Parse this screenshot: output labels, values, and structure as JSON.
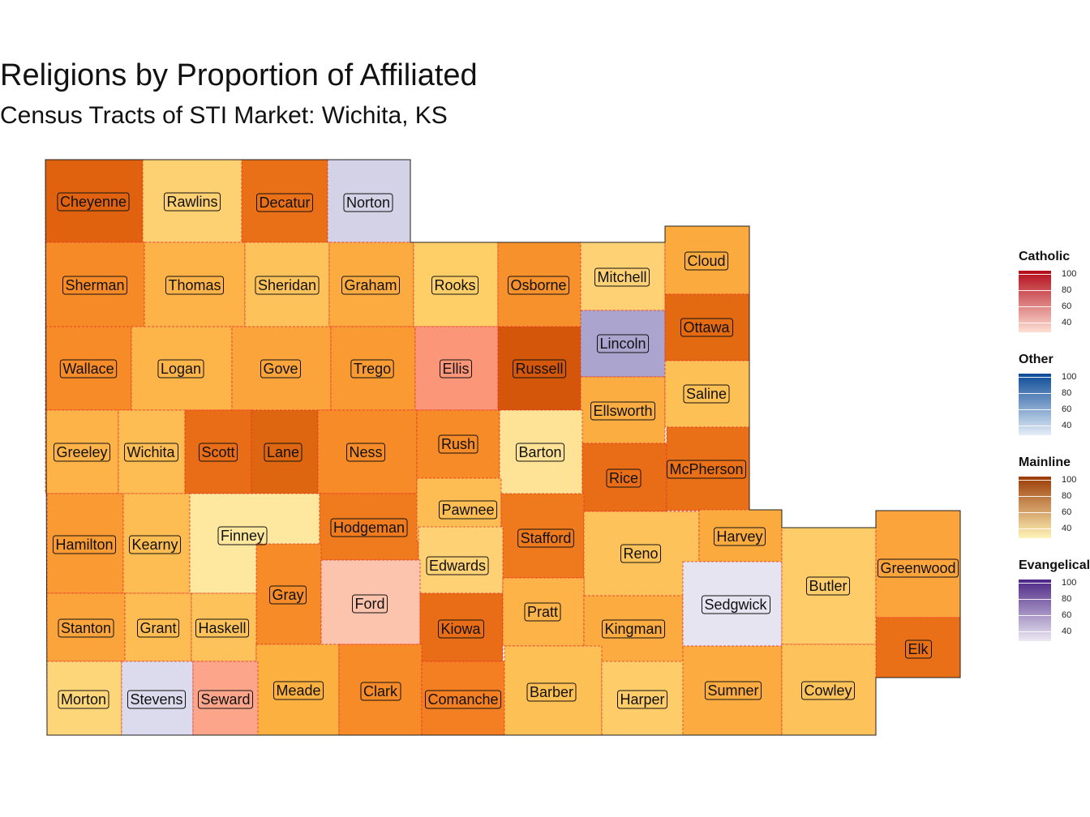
{
  "title": "Religions by Proportion of Affiliated",
  "subtitle": "Census Tracts of STI Market: Wichita, KS",
  "counties": [
    {
      "name": "Cheyenne",
      "religion": "Mainline",
      "color": "#e0620f"
    },
    {
      "name": "Rawlins",
      "religion": "Mainline",
      "color": "#fdd072"
    },
    {
      "name": "Decatur",
      "religion": "Mainline",
      "color": "#ea7018"
    },
    {
      "name": "Norton",
      "religion": "Evangelical",
      "color": "#d3d2e7"
    },
    {
      "name": "Sherman",
      "religion": "Mainline",
      "color": "#f68a27"
    },
    {
      "name": "Thomas",
      "religion": "Mainline",
      "color": "#fdb347"
    },
    {
      "name": "Sheridan",
      "religion": "Mainline",
      "color": "#fdc35a"
    },
    {
      "name": "Graham",
      "religion": "Mainline",
      "color": "#fbab3f"
    },
    {
      "name": "Rooks",
      "religion": "Mainline",
      "color": "#fece67"
    },
    {
      "name": "Osborne",
      "religion": "Mainline",
      "color": "#f7912c"
    },
    {
      "name": "Mitchell",
      "religion": "Mainline",
      "color": "#fed274"
    },
    {
      "name": "Cloud",
      "religion": "Mainline",
      "color": "#fbaa3e"
    },
    {
      "name": "Wallace",
      "religion": "Mainline",
      "color": "#f68b28"
    },
    {
      "name": "Logan",
      "religion": "Mainline",
      "color": "#fdb549"
    },
    {
      "name": "Gove",
      "religion": "Mainline",
      "color": "#fba43c"
    },
    {
      "name": "Trego",
      "religion": "Mainline",
      "color": "#f99b32"
    },
    {
      "name": "Ellis",
      "religion": "Catholic",
      "color": "#fc9679"
    },
    {
      "name": "Russell",
      "religion": "Mainline",
      "color": "#d4560a"
    },
    {
      "name": "Lincoln",
      "religion": "Evangelical",
      "color": "#aaa4ce"
    },
    {
      "name": "Ottawa",
      "religion": "Mainline",
      "color": "#e46a12"
    },
    {
      "name": "Ellsworth",
      "religion": "Mainline",
      "color": "#fbad42"
    },
    {
      "name": "Saline",
      "religion": "Mainline",
      "color": "#fdc055"
    },
    {
      "name": "Greeley",
      "religion": "Mainline",
      "color": "#fdb347"
    },
    {
      "name": "Wichita",
      "religion": "Mainline",
      "color": "#fdbd52"
    },
    {
      "name": "Scott",
      "religion": "Mainline",
      "color": "#e96d16"
    },
    {
      "name": "Lane",
      "religion": "Mainline",
      "color": "#df6611"
    },
    {
      "name": "Ness",
      "religion": "Mainline",
      "color": "#f68b28"
    },
    {
      "name": "Rush",
      "religion": "Mainline",
      "color": "#f68b28"
    },
    {
      "name": "Barton",
      "religion": "Mainline",
      "color": "#fee396"
    },
    {
      "name": "Rice",
      "religion": "Mainline",
      "color": "#e96d16"
    },
    {
      "name": "McPherson",
      "religion": "Mainline",
      "color": "#ea7018"
    },
    {
      "name": "Hamilton",
      "religion": "Mainline",
      "color": "#f99b32"
    },
    {
      "name": "Kearny",
      "religion": "Mainline",
      "color": "#fdbd52"
    },
    {
      "name": "Finney",
      "religion": "Mainline",
      "color": "#fee79e"
    },
    {
      "name": "Hodgeman",
      "religion": "Mainline",
      "color": "#f07b1f"
    },
    {
      "name": "Pawnee",
      "religion": "Mainline",
      "color": "#fdbd52"
    },
    {
      "name": "Stafford",
      "religion": "Mainline",
      "color": "#ef7a1e"
    },
    {
      "name": "Reno",
      "religion": "Mainline",
      "color": "#fdc35a"
    },
    {
      "name": "Harvey",
      "religion": "Mainline",
      "color": "#fbaa3e"
    },
    {
      "name": "Edwards",
      "religion": "Mainline",
      "color": "#fed274"
    },
    {
      "name": "Gray",
      "religion": "Mainline",
      "color": "#f68b28"
    },
    {
      "name": "Ford",
      "religion": "Catholic",
      "color": "#fdc4ad"
    },
    {
      "name": "Kiowa",
      "religion": "Mainline",
      "color": "#e96d16"
    },
    {
      "name": "Pratt",
      "religion": "Mainline",
      "color": "#fdb347"
    },
    {
      "name": "Kingman",
      "religion": "Mainline",
      "color": "#fbab3f"
    },
    {
      "name": "Sedgwick",
      "religion": "Evangelical",
      "color": "#e6e4f1"
    },
    {
      "name": "Butler",
      "religion": "Mainline",
      "color": "#fecc68"
    },
    {
      "name": "Greenwood",
      "religion": "Mainline",
      "color": "#fba43c"
    },
    {
      "name": "Elk",
      "religion": "Mainline",
      "color": "#ea7018"
    },
    {
      "name": "Stanton",
      "religion": "Mainline",
      "color": "#fba43c"
    },
    {
      "name": "Grant",
      "religion": "Mainline",
      "color": "#fdbd52"
    },
    {
      "name": "Haskell",
      "religion": "Mainline",
      "color": "#fdc35a"
    },
    {
      "name": "Meade",
      "religion": "Mainline",
      "color": "#fbb040"
    },
    {
      "name": "Clark",
      "religion": "Mainline",
      "color": "#f68b28"
    },
    {
      "name": "Comanche",
      "religion": "Mainline",
      "color": "#f47f22"
    },
    {
      "name": "Barber",
      "religion": "Mainline",
      "color": "#fdc055"
    },
    {
      "name": "Harper",
      "religion": "Mainline",
      "color": "#fecc68"
    },
    {
      "name": "Sumner",
      "religion": "Mainline",
      "color": "#fbab3f"
    },
    {
      "name": "Cowley",
      "religion": "Mainline",
      "color": "#fdc35a"
    },
    {
      "name": "Morton",
      "religion": "Mainline",
      "color": "#fed67a"
    },
    {
      "name": "Stevens",
      "religion": "Evangelical",
      "color": "#dcdaed"
    },
    {
      "name": "Seward",
      "religion": "Catholic",
      "color": "#fca58a"
    }
  ],
  "legend": [
    {
      "title": "Catholic",
      "color_low": "#fde0d5",
      "color_high": "#b30b18",
      "ticks": [
        "100",
        "80",
        "60",
        "40"
      ]
    },
    {
      "title": "Other",
      "color_low": "#e4eef8",
      "color_high": "#0c4a97",
      "ticks": [
        "100",
        "80",
        "60",
        "40"
      ]
    },
    {
      "title": "Mainline",
      "color_low": "#fff4b8",
      "color_high": "#9c3a06",
      "ticks": [
        "100",
        "80",
        "60",
        "40"
      ]
    },
    {
      "title": "Evangelical",
      "color_low": "#ebe9f3",
      "color_high": "#4c2585",
      "ticks": [
        "100",
        "80",
        "60",
        "40"
      ]
    }
  ]
}
